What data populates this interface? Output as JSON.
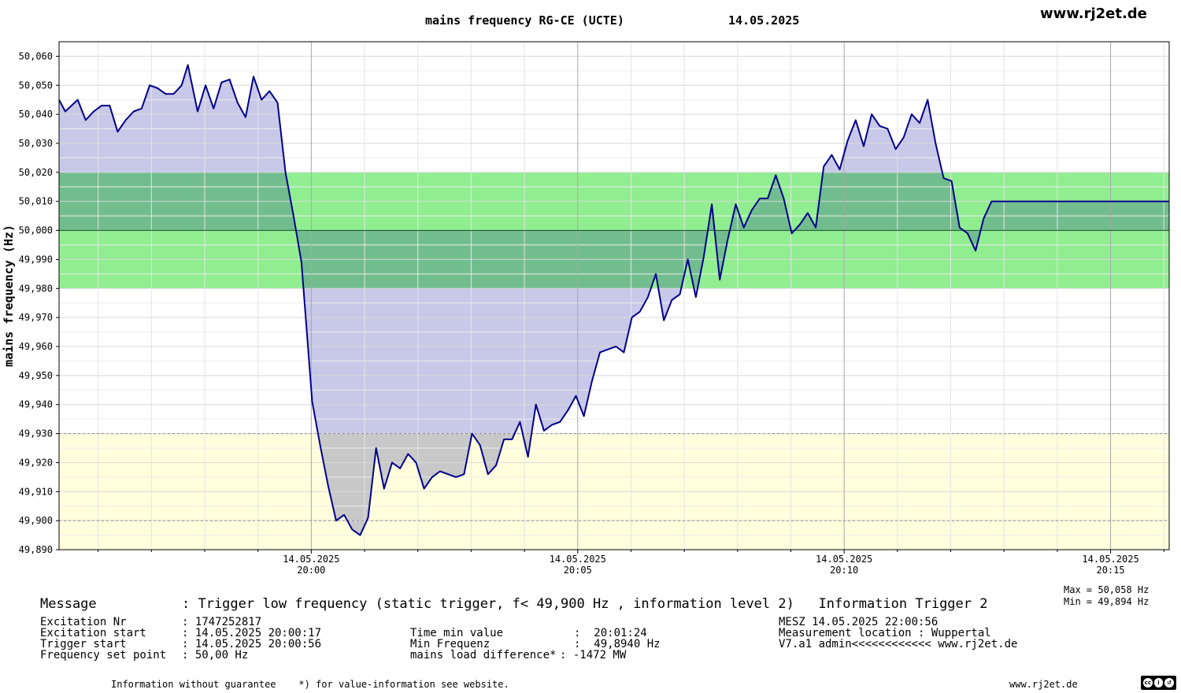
{
  "header": {
    "title": "mains frequency RG-CE (UCTE)",
    "date": "14.05.2025",
    "site": "www.rj2et.de"
  },
  "stats": {
    "max": "Max = 50,058 Hz",
    "min": "Min = 49,894 Hz"
  },
  "message": {
    "label": "Message",
    "text": ": Trigger low frequency (static trigger, f< 49,900 Hz , information level 2)   Information Trigger 2"
  },
  "info_left": [
    {
      "label": "Excitation Nr",
      "value": ": 1747252817"
    },
    {
      "label": "Excitation start",
      "value": ": 14.05.2025 20:00:17"
    },
    {
      "label": "Trigger start",
      "value": ": 14.05.2025 20:00:56"
    },
    {
      "label": "Frequency set point",
      "value": ": 50,00 Hz"
    }
  ],
  "info_mid": [
    {
      "label": "Time min value",
      "value": ":  20:01:24"
    },
    {
      "label": "Min Frequenz",
      "value": ":  49,8940 Hz"
    },
    {
      "label": "mains load difference*",
      "value": ": -1472 MW"
    }
  ],
  "info_right": [
    "MESZ 14.05.2025 22:00:56",
    "Measurement location : Wuppertal",
    "V7.a1 admin<<<<<<<<<<<< www.rj2et.de"
  ],
  "footer": {
    "disclaimer": "Information without guarantee    *) for value-information see website.",
    "site": "www.rj2et.de",
    "license_icon": "cc-by-sa-icon"
  },
  "colors": {
    "line": "#00008b",
    "fill_deviation": "#c8c8e8",
    "fill_below_band": "#c8c8c8",
    "band_green": "#90ee90",
    "band_overlap": "#72bd8e",
    "band_yellow": "#ffffdd"
  },
  "chart_data": {
    "type": "line",
    "title": "mains frequency RG-CE (UCTE)",
    "xlabel": "",
    "ylabel": "mains frequency (Hz)",
    "ylim": [
      49.89,
      50.065
    ],
    "xlim": [
      "19:55:16",
      "20:16:06"
    ],
    "x_unit": "time of day (HH:MM, 14.05.2025)",
    "yticks": [
      "49,890",
      "49,900",
      "49,910",
      "49,920",
      "49,930",
      "49,940",
      "49,950",
      "49,960",
      "49,970",
      "49,980",
      "49,990",
      "50,000",
      "50,010",
      "50,020",
      "50,030",
      "50,040",
      "50,050",
      "50,060"
    ],
    "xticks": [
      {
        "t": "20:00",
        "date": "14.05.2025",
        "time": "20:00"
      },
      {
        "t": "20:05",
        "date": "14.05.2025",
        "time": "20:05"
      },
      {
        "t": "20:10",
        "date": "14.05.2025",
        "time": "20:10"
      },
      {
        "t": "20:15",
        "date": "14.05.2025",
        "time": "20:15"
      }
    ],
    "bands": {
      "deadband": [
        49.98,
        50.02
      ],
      "setpoint": 50.0,
      "warning_low": [
        49.89,
        49.93
      ],
      "dashed_lines": [
        49.93,
        49.9
      ]
    },
    "grid": true,
    "series": [
      {
        "points": [
          [
            "19:55:16",
            50.045
          ],
          [
            "19:55:23",
            50.041
          ],
          [
            "19:55:30",
            50.043
          ],
          [
            "19:55:37",
            50.045
          ],
          [
            "19:55:46",
            50.038
          ],
          [
            "19:55:55",
            50.041
          ],
          [
            "19:56:04",
            50.043
          ],
          [
            "19:56:13",
            50.043
          ],
          [
            "19:56:22",
            50.034
          ],
          [
            "19:56:31",
            50.038
          ],
          [
            "19:56:40",
            50.041
          ],
          [
            "19:56:49",
            50.042
          ],
          [
            "19:56:58",
            50.05
          ],
          [
            "19:57:07",
            50.049
          ],
          [
            "19:57:16",
            50.047
          ],
          [
            "19:57:25",
            50.047
          ],
          [
            "19:57:34",
            50.05
          ],
          [
            "19:57:41",
            50.057
          ],
          [
            "19:57:52",
            50.041
          ],
          [
            "19:58:01",
            50.05
          ],
          [
            "19:58:10",
            50.042
          ],
          [
            "19:58:19",
            50.051
          ],
          [
            "19:58:28",
            50.052
          ],
          [
            "19:58:37",
            50.044
          ],
          [
            "19:58:46",
            50.039
          ],
          [
            "19:58:55",
            50.053
          ],
          [
            "19:59:04",
            50.045
          ],
          [
            "19:59:13",
            50.048
          ],
          [
            "19:59:22",
            50.044
          ],
          [
            "19:59:31",
            50.02
          ],
          [
            "19:59:40",
            50.005
          ],
          [
            "19:59:49",
            49.989
          ],
          [
            "19:59:55",
            49.965
          ],
          [
            "20:00:01",
            49.941
          ],
          [
            "20:00:10",
            49.926
          ],
          [
            "20:00:19",
            49.912
          ],
          [
            "20:00:28",
            49.9
          ],
          [
            "20:00:37",
            49.902
          ],
          [
            "20:00:46",
            49.897
          ],
          [
            "20:00:55",
            49.895
          ],
          [
            "20:01:04",
            49.901
          ],
          [
            "20:01:13",
            49.925
          ],
          [
            "20:01:22",
            49.911
          ],
          [
            "20:01:31",
            49.92
          ],
          [
            "20:01:40",
            49.918
          ],
          [
            "20:01:49",
            49.923
          ],
          [
            "20:01:58",
            49.92
          ],
          [
            "20:02:07",
            49.911
          ],
          [
            "20:02:16",
            49.915
          ],
          [
            "20:02:25",
            49.917
          ],
          [
            "20:02:34",
            49.916
          ],
          [
            "20:02:43",
            49.915
          ],
          [
            "20:02:52",
            49.916
          ],
          [
            "20:03:01",
            49.93
          ],
          [
            "20:03:10",
            49.926
          ],
          [
            "20:03:19",
            49.916
          ],
          [
            "20:03:28",
            49.919
          ],
          [
            "20:03:37",
            49.928
          ],
          [
            "20:03:46",
            49.928
          ],
          [
            "20:03:55",
            49.934
          ],
          [
            "20:04:04",
            49.922
          ],
          [
            "20:04:13",
            49.94
          ],
          [
            "20:04:22",
            49.931
          ],
          [
            "20:04:31",
            49.933
          ],
          [
            "20:04:40",
            49.934
          ],
          [
            "20:04:49",
            49.938
          ],
          [
            "20:04:58",
            49.943
          ],
          [
            "20:05:07",
            49.936
          ],
          [
            "20:05:16",
            49.948
          ],
          [
            "20:05:25",
            49.958
          ],
          [
            "20:05:34",
            49.959
          ],
          [
            "20:05:43",
            49.96
          ],
          [
            "20:05:52",
            49.958
          ],
          [
            "20:06:01",
            49.97
          ],
          [
            "20:06:10",
            49.972
          ],
          [
            "20:06:19",
            49.977
          ],
          [
            "20:06:28",
            49.985
          ],
          [
            "20:06:37",
            49.969
          ],
          [
            "20:06:46",
            49.976
          ],
          [
            "20:06:55",
            49.978
          ],
          [
            "20:07:04",
            49.99
          ],
          [
            "20:07:13",
            49.977
          ],
          [
            "20:07:22",
            49.991
          ],
          [
            "20:07:31",
            50.009
          ],
          [
            "20:07:40",
            49.983
          ],
          [
            "20:07:49",
            49.997
          ],
          [
            "20:07:58",
            50.009
          ],
          [
            "20:08:07",
            50.001
          ],
          [
            "20:08:16",
            50.007
          ],
          [
            "20:08:25",
            50.011
          ],
          [
            "20:08:34",
            50.011
          ],
          [
            "20:08:43",
            50.019
          ],
          [
            "20:08:52",
            50.011
          ],
          [
            "20:09:01",
            49.999
          ],
          [
            "20:09:10",
            50.002
          ],
          [
            "20:09:19",
            50.006
          ],
          [
            "20:09:28",
            50.001
          ],
          [
            "20:09:37",
            50.022
          ],
          [
            "20:09:46",
            50.026
          ],
          [
            "20:09:55",
            50.021
          ],
          [
            "20:10:04",
            50.031
          ],
          [
            "20:10:13",
            50.038
          ],
          [
            "20:10:22",
            50.029
          ],
          [
            "20:10:31",
            50.04
          ],
          [
            "20:10:40",
            50.036
          ],
          [
            "20:10:49",
            50.035
          ],
          [
            "20:10:58",
            50.028
          ],
          [
            "20:11:07",
            50.032
          ],
          [
            "20:11:16",
            50.04
          ],
          [
            "20:11:25",
            50.037
          ],
          [
            "20:11:34",
            50.045
          ],
          [
            "20:11:43",
            50.03
          ],
          [
            "20:11:52",
            50.018
          ],
          [
            "20:12:01",
            50.017
          ],
          [
            "20:12:10",
            50.001
          ],
          [
            "20:12:19",
            49.999
          ],
          [
            "20:12:28",
            49.993
          ],
          [
            "20:12:37",
            50.004
          ],
          [
            "20:12:46",
            50.01
          ],
          [
            "20:16:06",
            50.01
          ]
        ]
      }
    ]
  }
}
